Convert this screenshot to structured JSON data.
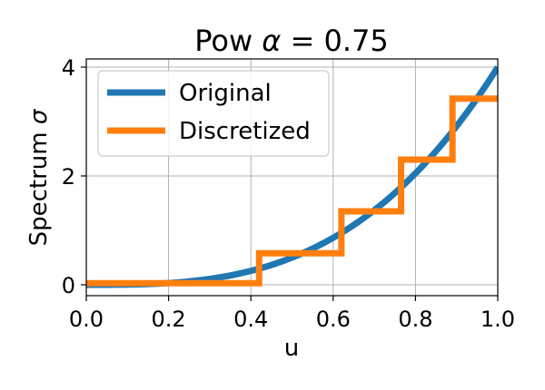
{
  "chart_data": {
    "type": "line",
    "title_prefix": "Pow ",
    "title_symbol": "α",
    "title_suffix": " = 0.75",
    "xlabel": "u",
    "ylabel_prefix": "Spectrum ",
    "ylabel_symbol": "σ",
    "xlim": [
      0,
      1
    ],
    "ylim": [
      -0.2,
      4.15
    ],
    "xticks": [
      "0.0",
      "0.2",
      "0.4",
      "0.6",
      "0.8",
      "1.0"
    ],
    "xtick_values": [
      0,
      0.2,
      0.4,
      0.6,
      0.8,
      1.0
    ],
    "yticks": [
      "0",
      "2",
      "4"
    ],
    "ytick_values": [
      0,
      2,
      4
    ],
    "grid": true,
    "legend_position": "upper-left",
    "series": [
      {
        "name": "Original",
        "color": "#1f77b4",
        "kind": "curve",
        "formula": "4*u^3",
        "x": [
          0,
          0.05,
          0.1,
          0.15,
          0.2,
          0.25,
          0.3,
          0.35,
          0.4,
          0.45,
          0.5,
          0.55,
          0.6,
          0.65,
          0.7,
          0.75,
          0.8,
          0.85,
          0.9,
          0.95,
          1.0
        ],
        "y": [
          0,
          0.0005,
          0.004,
          0.0135,
          0.032,
          0.0625,
          0.108,
          0.1715,
          0.256,
          0.3645,
          0.5,
          0.6655,
          0.864,
          1.0985,
          1.372,
          1.6875,
          2.048,
          2.4565,
          2.916,
          3.4295,
          4.0
        ]
      },
      {
        "name": "Discretized",
        "color": "#ff7f0e",
        "kind": "step",
        "x": [
          0,
          0.42,
          0.42,
          0.62,
          0.62,
          0.765,
          0.765,
          0.89,
          0.89,
          1.0
        ],
        "y": [
          0.03,
          0.03,
          0.58,
          0.58,
          1.35,
          1.35,
          2.3,
          2.3,
          3.42,
          3.42
        ]
      }
    ]
  }
}
